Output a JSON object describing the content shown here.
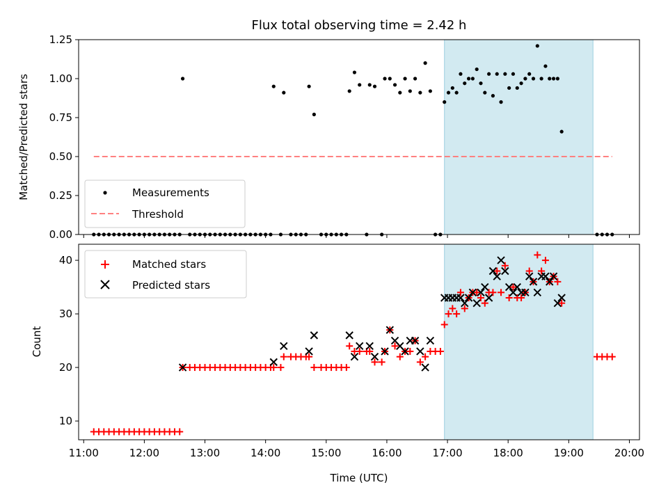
{
  "chart_data": [
    {
      "type": "scatter",
      "title": "Flux total observing time = 2.42 h",
      "xlabel": "",
      "ylabel": "Matched/Predicted stars",
      "xlim": [
        "10:55",
        "20:10"
      ],
      "ylim": [
        0,
        1.25
      ],
      "yticks": [
        "0.00",
        "0.25",
        "0.50",
        "0.75",
        "1.00",
        "1.25"
      ],
      "xticks": [
        "11:00",
        "12:00",
        "13:00",
        "14:00",
        "15:00",
        "16:00",
        "17:00",
        "18:00",
        "19:00",
        "20:00"
      ],
      "shaded_span": [
        "16:57",
        "19:24"
      ],
      "legend_position": "lower-left",
      "series": [
        {
          "name": "Measurements",
          "marker": "dot",
          "color": "#000000",
          "points": [
            [
              "11:10",
              0
            ],
            [
              "11:15",
              0
            ],
            [
              "11:20",
              0
            ],
            [
              "11:25",
              0
            ],
            [
              "11:30",
              0
            ],
            [
              "11:35",
              0
            ],
            [
              "11:40",
              0
            ],
            [
              "11:45",
              0
            ],
            [
              "11:50",
              0
            ],
            [
              "11:55",
              0
            ],
            [
              "12:00",
              0
            ],
            [
              "12:05",
              0
            ],
            [
              "12:10",
              0
            ],
            [
              "12:15",
              0
            ],
            [
              "12:20",
              0
            ],
            [
              "12:25",
              0
            ],
            [
              "12:30",
              0
            ],
            [
              "12:35",
              0
            ],
            [
              "12:38",
              1.0
            ],
            [
              "12:45",
              0
            ],
            [
              "12:50",
              0
            ],
            [
              "12:55",
              0
            ],
            [
              "13:00",
              0
            ],
            [
              "13:05",
              0
            ],
            [
              "13:10",
              0
            ],
            [
              "13:15",
              0
            ],
            [
              "13:20",
              0
            ],
            [
              "13:25",
              0
            ],
            [
              "13:30",
              0
            ],
            [
              "13:35",
              0
            ],
            [
              "13:40",
              0
            ],
            [
              "13:45",
              0
            ],
            [
              "13:50",
              0
            ],
            [
              "13:55",
              0
            ],
            [
              "14:00",
              0
            ],
            [
              "14:05",
              0
            ],
            [
              "14:08",
              0.95
            ],
            [
              "14:15",
              0
            ],
            [
              "14:18",
              0.91
            ],
            [
              "14:25",
              0
            ],
            [
              "14:30",
              0
            ],
            [
              "14:35",
              0
            ],
            [
              "14:40",
              0
            ],
            [
              "14:43",
              0.95
            ],
            [
              "14:48",
              0.77
            ],
            [
              "14:55",
              0
            ],
            [
              "15:00",
              0
            ],
            [
              "15:05",
              0
            ],
            [
              "15:10",
              0
            ],
            [
              "15:15",
              0
            ],
            [
              "15:20",
              0
            ],
            [
              "15:23",
              0.92
            ],
            [
              "15:28",
              1.04
            ],
            [
              "15:33",
              0.96
            ],
            [
              "15:40",
              0
            ],
            [
              "15:43",
              0.96
            ],
            [
              "15:48",
              0.95
            ],
            [
              "15:55",
              0
            ],
            [
              "15:58",
              1.0
            ],
            [
              "16:03",
              1.0
            ],
            [
              "16:08",
              0.96
            ],
            [
              "16:13",
              0.91
            ],
            [
              "16:18",
              1.0
            ],
            [
              "16:23",
              0.92
            ],
            [
              "16:28",
              1.0
            ],
            [
              "16:33",
              0.91
            ],
            [
              "16:38",
              1.1
            ],
            [
              "16:43",
              0.92
            ],
            [
              "16:48",
              0
            ],
            [
              "16:53",
              0
            ],
            [
              "16:57",
              0.85
            ],
            [
              "17:01",
              0.91
            ],
            [
              "17:05",
              0.94
            ],
            [
              "17:09",
              0.91
            ],
            [
              "17:13",
              1.03
            ],
            [
              "17:17",
              0.97
            ],
            [
              "17:21",
              1.0
            ],
            [
              "17:25",
              1.0
            ],
            [
              "17:29",
              1.06
            ],
            [
              "17:33",
              0.97
            ],
            [
              "17:37",
              0.91
            ],
            [
              "17:41",
              1.03
            ],
            [
              "17:45",
              0.89
            ],
            [
              "17:49",
              1.03
            ],
            [
              "17:53",
              0.85
            ],
            [
              "17:57",
              1.03
            ],
            [
              "18:01",
              0.94
            ],
            [
              "18:05",
              1.03
            ],
            [
              "18:09",
              0.94
            ],
            [
              "18:13",
              0.97
            ],
            [
              "18:17",
              1.0
            ],
            [
              "18:21",
              1.03
            ],
            [
              "18:25",
              1.0
            ],
            [
              "18:29",
              1.21
            ],
            [
              "18:33",
              1.0
            ],
            [
              "18:37",
              1.08
            ],
            [
              "18:41",
              1.0
            ],
            [
              "18:45",
              1.0
            ],
            [
              "18:49",
              1.0
            ],
            [
              "18:53",
              0.66
            ],
            [
              "19:28",
              0
            ],
            [
              "19:33",
              0
            ],
            [
              "19:38",
              0
            ],
            [
              "19:43",
              0
            ]
          ]
        },
        {
          "name": "Threshold",
          "marker": "dashed-line",
          "color": "#ff8080",
          "points": [
            [
              "11:10",
              0.5
            ],
            [
              "19:43",
              0.5
            ]
          ]
        }
      ]
    },
    {
      "type": "scatter",
      "title": "",
      "xlabel": "Time (UTC)",
      "ylabel": "Count",
      "xlim": [
        "10:55",
        "20:10"
      ],
      "ylim": [
        6.5,
        43
      ],
      "yticks": [
        "10",
        "20",
        "30",
        "40"
      ],
      "xticks": [
        "11:00",
        "12:00",
        "13:00",
        "14:00",
        "15:00",
        "16:00",
        "17:00",
        "18:00",
        "19:00",
        "20:00"
      ],
      "shaded_span": [
        "16:57",
        "19:24"
      ],
      "legend_position": "top-left",
      "series": [
        {
          "name": "Matched stars",
          "marker": "plus",
          "color": "#ff0000",
          "points": [
            [
              "11:10",
              8
            ],
            [
              "11:15",
              8
            ],
            [
              "11:20",
              8
            ],
            [
              "11:25",
              8
            ],
            [
              "11:30",
              8
            ],
            [
              "11:35",
              8
            ],
            [
              "11:40",
              8
            ],
            [
              "11:45",
              8
            ],
            [
              "11:50",
              8
            ],
            [
              "11:55",
              8
            ],
            [
              "12:00",
              8
            ],
            [
              "12:05",
              8
            ],
            [
              "12:10",
              8
            ],
            [
              "12:15",
              8
            ],
            [
              "12:20",
              8
            ],
            [
              "12:25",
              8
            ],
            [
              "12:30",
              8
            ],
            [
              "12:35",
              8
            ],
            [
              "12:38",
              20
            ],
            [
              "12:45",
              20
            ],
            [
              "12:50",
              20
            ],
            [
              "12:55",
              20
            ],
            [
              "13:00",
              20
            ],
            [
              "13:05",
              20
            ],
            [
              "13:10",
              20
            ],
            [
              "13:15",
              20
            ],
            [
              "13:20",
              20
            ],
            [
              "13:25",
              20
            ],
            [
              "13:30",
              20
            ],
            [
              "13:35",
              20
            ],
            [
              "13:40",
              20
            ],
            [
              "13:45",
              20
            ],
            [
              "13:50",
              20
            ],
            [
              "13:55",
              20
            ],
            [
              "14:00",
              20
            ],
            [
              "14:05",
              20
            ],
            [
              "14:08",
              20
            ],
            [
              "14:15",
              20
            ],
            [
              "14:18",
              22
            ],
            [
              "14:25",
              22
            ],
            [
              "14:30",
              22
            ],
            [
              "14:35",
              22
            ],
            [
              "14:40",
              22
            ],
            [
              "14:43",
              22
            ],
            [
              "14:48",
              20
            ],
            [
              "14:55",
              20
            ],
            [
              "15:00",
              20
            ],
            [
              "15:05",
              20
            ],
            [
              "15:10",
              20
            ],
            [
              "15:15",
              20
            ],
            [
              "15:20",
              20
            ],
            [
              "15:23",
              24
            ],
            [
              "15:28",
              23
            ],
            [
              "15:33",
              23
            ],
            [
              "15:40",
              23
            ],
            [
              "15:43",
              23
            ],
            [
              "15:48",
              21
            ],
            [
              "15:55",
              21
            ],
            [
              "15:58",
              23
            ],
            [
              "16:03",
              27
            ],
            [
              "16:08",
              24
            ],
            [
              "16:13",
              22
            ],
            [
              "16:18",
              23
            ],
            [
              "16:23",
              23
            ],
            [
              "16:28",
              25
            ],
            [
              "16:33",
              21
            ],
            [
              "16:38",
              22
            ],
            [
              "16:43",
              23
            ],
            [
              "16:48",
              23
            ],
            [
              "16:53",
              23
            ],
            [
              "16:57",
              28
            ],
            [
              "17:01",
              30
            ],
            [
              "17:05",
              31
            ],
            [
              "17:09",
              30
            ],
            [
              "17:13",
              34
            ],
            [
              "17:17",
              31
            ],
            [
              "17:21",
              33
            ],
            [
              "17:25",
              34
            ],
            [
              "17:29",
              34
            ],
            [
              "17:33",
              33
            ],
            [
              "17:37",
              32
            ],
            [
              "17:41",
              34
            ],
            [
              "17:45",
              34
            ],
            [
              "17:49",
              38
            ],
            [
              "17:53",
              34
            ],
            [
              "17:57",
              39
            ],
            [
              "18:01",
              33
            ],
            [
              "18:05",
              35
            ],
            [
              "18:09",
              33
            ],
            [
              "18:13",
              33
            ],
            [
              "18:17",
              34
            ],
            [
              "18:21",
              38
            ],
            [
              "18:25",
              36
            ],
            [
              "18:29",
              41
            ],
            [
              "18:33",
              38
            ],
            [
              "18:37",
              40
            ],
            [
              "18:41",
              36
            ],
            [
              "18:45",
              37
            ],
            [
              "18:49",
              36
            ],
            [
              "18:53",
              32
            ],
            [
              "19:28",
              22
            ],
            [
              "19:33",
              22
            ],
            [
              "19:38",
              22
            ],
            [
              "19:43",
              22
            ]
          ]
        },
        {
          "name": "Predicted stars",
          "marker": "x",
          "color": "#000000",
          "points": [
            [
              "12:38",
              20
            ],
            [
              "14:08",
              21
            ],
            [
              "14:18",
              24
            ],
            [
              "14:43",
              23
            ],
            [
              "14:48",
              26
            ],
            [
              "15:23",
              26
            ],
            [
              "15:28",
              22
            ],
            [
              "15:33",
              24
            ],
            [
              "15:43",
              24
            ],
            [
              "15:48",
              22
            ],
            [
              "15:58",
              23
            ],
            [
              "16:03",
              27
            ],
            [
              "16:08",
              25
            ],
            [
              "16:13",
              24
            ],
            [
              "16:18",
              23
            ],
            [
              "16:23",
              25
            ],
            [
              "16:28",
              25
            ],
            [
              "16:33",
              23
            ],
            [
              "16:38",
              20
            ],
            [
              "16:43",
              25
            ],
            [
              "16:57",
              33
            ],
            [
              "17:01",
              33
            ],
            [
              "17:05",
              33
            ],
            [
              "17:09",
              33
            ],
            [
              "17:13",
              33
            ],
            [
              "17:17",
              32
            ],
            [
              "17:21",
              33
            ],
            [
              "17:25",
              34
            ],
            [
              "17:29",
              32
            ],
            [
              "17:33",
              34
            ],
            [
              "17:37",
              35
            ],
            [
              "17:41",
              33
            ],
            [
              "17:45",
              38
            ],
            [
              "17:49",
              37
            ],
            [
              "17:53",
              40
            ],
            [
              "17:57",
              38
            ],
            [
              "18:01",
              35
            ],
            [
              "18:05",
              34
            ],
            [
              "18:09",
              35
            ],
            [
              "18:13",
              34
            ],
            [
              "18:17",
              34
            ],
            [
              "18:21",
              37
            ],
            [
              "18:25",
              36
            ],
            [
              "18:29",
              34
            ],
            [
              "18:33",
              37
            ],
            [
              "18:37",
              37
            ],
            [
              "18:41",
              36
            ],
            [
              "18:45",
              37
            ],
            [
              "18:49",
              32
            ],
            [
              "18:53",
              33
            ]
          ]
        }
      ]
    }
  ],
  "colors": {
    "shade_fill": "#add8e6",
    "shade_edge": "#9ccfe0",
    "axes": "#000000"
  }
}
